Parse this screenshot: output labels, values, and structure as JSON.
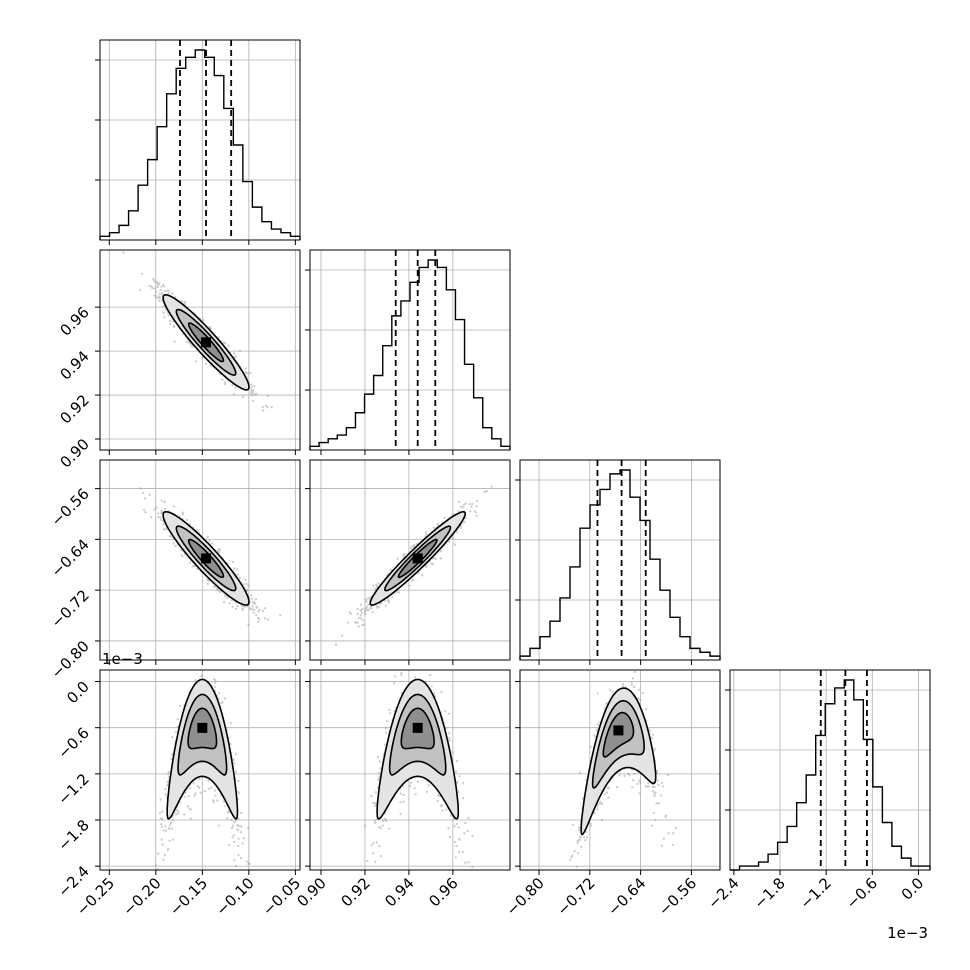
{
  "chart_data": {
    "type": "corner",
    "grid": true,
    "params": [
      {
        "range": [
          -0.26,
          -0.045
        ],
        "ticks": [
          -0.25,
          -0.2,
          -0.15,
          -0.1,
          -0.05
        ],
        "tick_labels": [
          "−0.25",
          "−0.20",
          "−0.15",
          "−0.10",
          "−0.05"
        ],
        "hist_range": [
          -0.26,
          -0.045
        ],
        "hist_counts": [
          1,
          2,
          4,
          8,
          15,
          22,
          31,
          40,
          47,
          50,
          52,
          50,
          45,
          36,
          26,
          16,
          9,
          5,
          3,
          2,
          1
        ],
        "quantiles": [
          -0.174,
          -0.146,
          -0.119
        ]
      },
      {
        "range": [
          0.895,
          0.986
        ],
        "ticks": [
          0.9,
          0.92,
          0.94,
          0.96
        ],
        "tick_labels": [
          "0.90",
          "0.92",
          "0.94",
          "0.96"
        ],
        "hist_range": [
          0.895,
          0.986
        ],
        "hist_counts": [
          1,
          2,
          3,
          4,
          6,
          10,
          15,
          20,
          28,
          36,
          40,
          45,
          49,
          51,
          49,
          43,
          35,
          23,
          14,
          6,
          3,
          1
        ],
        "quantiles": [
          0.934,
          0.944,
          0.952
        ]
      },
      {
        "range": [
          -0.83,
          -0.515
        ],
        "ticks": [
          -0.8,
          -0.72,
          -0.64,
          -0.56
        ],
        "tick_labels": [
          "−0.80",
          "−0.72",
          "−0.64",
          "−0.56"
        ],
        "hist_range": [
          -0.83,
          -0.515
        ],
        "hist_counts": [
          1,
          3,
          6,
          10,
          16,
          24,
          34,
          40,
          44,
          48,
          49,
          42,
          36,
          26,
          18,
          11,
          6,
          3,
          2,
          1
        ],
        "quantiles": [
          -0.708,
          -0.67,
          -0.632
        ]
      },
      {
        "range": [
          -2.45,
          0.15
        ],
        "ticks": [
          -2.4,
          -1.8,
          -1.2,
          -0.6,
          0.0
        ],
        "tick_labels": [
          "−2.4",
          "−1.8",
          "−1.2",
          "−0.6",
          "0.0"
        ],
        "offset_label": "1e−3",
        "hist_range": [
          -2.45,
          0.15
        ],
        "hist_counts": [
          0,
          1,
          1,
          2,
          4,
          7,
          11,
          17,
          24,
          34,
          42,
          46,
          48,
          43,
          33,
          21,
          12,
          6,
          3,
          1,
          1
        ],
        "quantiles": [
          -1.27,
          -0.95,
          -0.67
        ]
      }
    ],
    "pairs": [
      {
        "row": 1,
        "col": 0,
        "center": [
          -0.146,
          0.944
        ],
        "sigma": [
          0.022,
          0.0103
        ],
        "rho": -0.94,
        "banana": 0
      },
      {
        "row": 2,
        "col": 0,
        "center": [
          -0.146,
          -0.67
        ],
        "sigma": [
          0.022,
          0.035
        ],
        "rho": -0.93,
        "banana": 0
      },
      {
        "row": 2,
        "col": 1,
        "center": [
          0.944,
          -0.67
        ],
        "sigma": [
          0.0103,
          0.035
        ],
        "rho": 0.96,
        "banana": 0
      },
      {
        "row": 3,
        "col": 0,
        "center": [
          -0.15,
          -0.85
        ],
        "sigma": [
          0.018,
          0.3
        ],
        "rho": 0.0,
        "banana": 1.5
      },
      {
        "row": 3,
        "col": 1,
        "center": [
          0.944,
          -0.85
        ],
        "sigma": [
          0.0088,
          0.3
        ],
        "rho": 0.0,
        "banana": 1.5
      },
      {
        "row": 3,
        "col": 2,
        "center": [
          -0.675,
          -0.85
        ],
        "sigma": [
          0.028,
          0.3
        ],
        "rho": 0.55,
        "banana": 1.3
      }
    ]
  }
}
